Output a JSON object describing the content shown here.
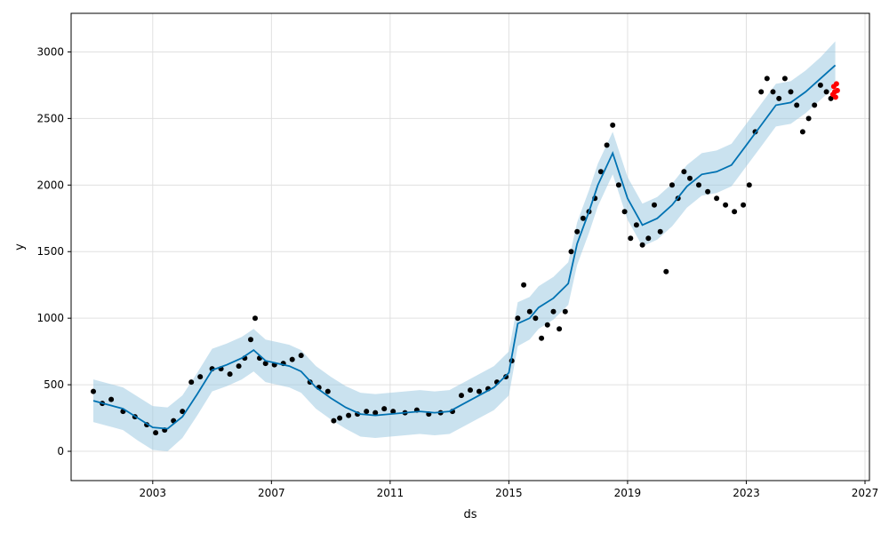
{
  "chart_data": {
    "type": "scatter",
    "title": "",
    "xlabel": "ds",
    "ylabel": "y",
    "xlim": [
      2000.25,
      2027.15
    ],
    "ylim": [
      -220,
      3290
    ],
    "x_ticks": [
      2003,
      2007,
      2011,
      2015,
      2019,
      2023,
      2027
    ],
    "x_tick_labels": [
      "2003",
      "2007",
      "2011",
      "2015",
      "2019",
      "2023",
      "2027"
    ],
    "y_ticks": [
      0,
      500,
      1000,
      1500,
      2000,
      2500,
      3000
    ],
    "y_tick_labels": [
      "0",
      "500",
      "1000",
      "1500",
      "2000",
      "2500",
      "3000"
    ],
    "grid": true,
    "legend": "none",
    "colors": {
      "observed": "#000000",
      "forecast_line": "#0072B2",
      "uncertainty_band": "#9ECAE1",
      "highlight": "#FF0000"
    },
    "series": [
      {
        "type": "scatter",
        "role": "observed",
        "x": [
          2001.0,
          2001.3,
          2001.6,
          2002.0,
          2002.4,
          2002.8,
          2003.1,
          2003.4,
          2003.7,
          2004.0,
          2004.3,
          2004.6,
          2005.0,
          2005.3,
          2005.6,
          2005.9,
          2006.1,
          2006.3,
          2006.45,
          2006.6,
          2006.8,
          2007.1,
          2007.4,
          2007.7,
          2008.0,
          2008.3,
          2008.6,
          2008.9,
          2009.1,
          2009.3,
          2009.6,
          2009.9,
          2010.2,
          2010.5,
          2010.8,
          2011.1,
          2011.5,
          2011.9,
          2012.3,
          2012.7,
          2013.1,
          2013.4,
          2013.7,
          2014.0,
          2014.3,
          2014.6,
          2014.9,
          2015.1,
          2015.3,
          2015.5,
          2015.7,
          2015.9,
          2016.1,
          2016.3,
          2016.5,
          2016.7,
          2016.9,
          2017.1,
          2017.3,
          2017.5,
          2017.7,
          2017.9,
          2018.1,
          2018.3,
          2018.5,
          2018.7,
          2018.9,
          2019.1,
          2019.3,
          2019.5,
          2019.7,
          2019.9,
          2020.1,
          2020.3,
          2020.5,
          2020.7,
          2020.9,
          2021.1,
          2021.4,
          2021.7,
          2022.0,
          2022.3,
          2022.6,
          2022.9,
          2023.1,
          2023.3,
          2023.5,
          2023.7,
          2023.9,
          2024.1,
          2024.3,
          2024.5,
          2024.7,
          2024.9,
          2025.1,
          2025.3,
          2025.5,
          2025.7,
          2025.85
        ],
        "y": [
          450,
          360,
          390,
          300,
          260,
          200,
          140,
          160,
          230,
          300,
          520,
          560,
          620,
          620,
          580,
          640,
          700,
          840,
          1000,
          700,
          660,
          650,
          660,
          690,
          720,
          520,
          480,
          450,
          230,
          250,
          270,
          280,
          300,
          290,
          320,
          300,
          290,
          310,
          280,
          290,
          300,
          420,
          460,
          450,
          470,
          520,
          560,
          680,
          1000,
          1250,
          1050,
          1000,
          850,
          950,
          1050,
          920,
          1050,
          1500,
          1650,
          1750,
          1800,
          1900,
          2100,
          2300,
          2450,
          2000,
          1800,
          1600,
          1700,
          1550,
          1600,
          1850,
          1650,
          1350,
          2000,
          1900,
          2100,
          2050,
          2000,
          1950,
          1900,
          1850,
          1800,
          1850,
          2000,
          2400,
          2700,
          2800,
          2700,
          2650,
          2800,
          2700,
          2600,
          2400,
          2500,
          2600,
          2750,
          2700,
          2650
        ]
      },
      {
        "type": "line",
        "role": "trend",
        "x": [
          2001.0,
          2001.5,
          2002.0,
          2002.5,
          2003.0,
          2003.5,
          2004.0,
          2004.5,
          2005.0,
          2005.5,
          2006.0,
          2006.4,
          2006.8,
          2007.2,
          2007.6,
          2008.0,
          2008.5,
          2009.0,
          2009.5,
          2010.0,
          2010.5,
          2011.0,
          2011.5,
          2012.0,
          2012.5,
          2013.0,
          2013.5,
          2014.0,
          2014.5,
          2015.0,
          2015.3,
          2015.7,
          2016.0,
          2016.5,
          2017.0,
          2017.3,
          2017.7,
          2018.0,
          2018.5,
          2019.0,
          2019.5,
          2020.0,
          2020.5,
          2021.0,
          2021.5,
          2022.0,
          2022.5,
          2023.0,
          2023.5,
          2024.0,
          2024.5,
          2025.0,
          2025.5,
          2026.0
        ],
        "y": [
          380,
          350,
          320,
          250,
          180,
          170,
          260,
          430,
          610,
          650,
          700,
          760,
          680,
          660,
          640,
          600,
          480,
          400,
          330,
          280,
          270,
          280,
          290,
          300,
          290,
          300,
          360,
          420,
          480,
          590,
          960,
          1000,
          1080,
          1150,
          1260,
          1560,
          1800,
          2000,
          2240,
          1900,
          1700,
          1750,
          1850,
          1990,
          2080,
          2100,
          2150,
          2300,
          2450,
          2600,
          2620,
          2700,
          2800,
          2900
        ]
      },
      {
        "type": "area",
        "role": "uncertainty",
        "x": [
          2001.0,
          2001.5,
          2002.0,
          2002.5,
          2003.0,
          2003.5,
          2004.0,
          2004.5,
          2005.0,
          2005.5,
          2006.0,
          2006.4,
          2006.8,
          2007.2,
          2007.6,
          2008.0,
          2008.5,
          2009.0,
          2009.5,
          2010.0,
          2010.5,
          2011.0,
          2011.5,
          2012.0,
          2012.5,
          2013.0,
          2013.5,
          2014.0,
          2014.5,
          2015.0,
          2015.3,
          2015.7,
          2016.0,
          2016.5,
          2017.0,
          2017.3,
          2017.7,
          2018.0,
          2018.5,
          2019.0,
          2019.5,
          2020.0,
          2020.5,
          2021.0,
          2021.5,
          2022.0,
          2022.5,
          2023.0,
          2023.5,
          2024.0,
          2024.5,
          2025.0,
          2025.5,
          2026.0
        ],
        "lower": [
          220,
          190,
          160,
          80,
          10,
          0,
          100,
          270,
          450,
          490,
          540,
          600,
          520,
          500,
          480,
          440,
          320,
          240,
          170,
          110,
          100,
          110,
          120,
          130,
          120,
          130,
          190,
          250,
          310,
          420,
          790,
          840,
          920,
          990,
          1100,
          1400,
          1640,
          1840,
          2080,
          1740,
          1540,
          1590,
          1690,
          1830,
          1920,
          1940,
          1990,
          2140,
          2290,
          2440,
          2460,
          2540,
          2640,
          2740
        ],
        "upper": [
          540,
          510,
          480,
          410,
          340,
          330,
          420,
          590,
          770,
          810,
          860,
          920,
          840,
          820,
          800,
          760,
          640,
          560,
          490,
          440,
          430,
          440,
          450,
          460,
          450,
          460,
          520,
          580,
          640,
          750,
          1120,
          1160,
          1240,
          1310,
          1420,
          1720,
          1960,
          2160,
          2400,
          2060,
          1860,
          1910,
          2010,
          2150,
          2240,
          2260,
          2310,
          2460,
          2610,
          2760,
          2780,
          2860,
          2960,
          3080
        ]
      },
      {
        "type": "scatter",
        "role": "highlight",
        "x": [
          2025.92,
          2025.95,
          2025.98,
          2026.01,
          2026.04,
          2026.07
        ],
        "y": [
          2680,
          2740,
          2700,
          2660,
          2760,
          2710
        ]
      }
    ]
  }
}
